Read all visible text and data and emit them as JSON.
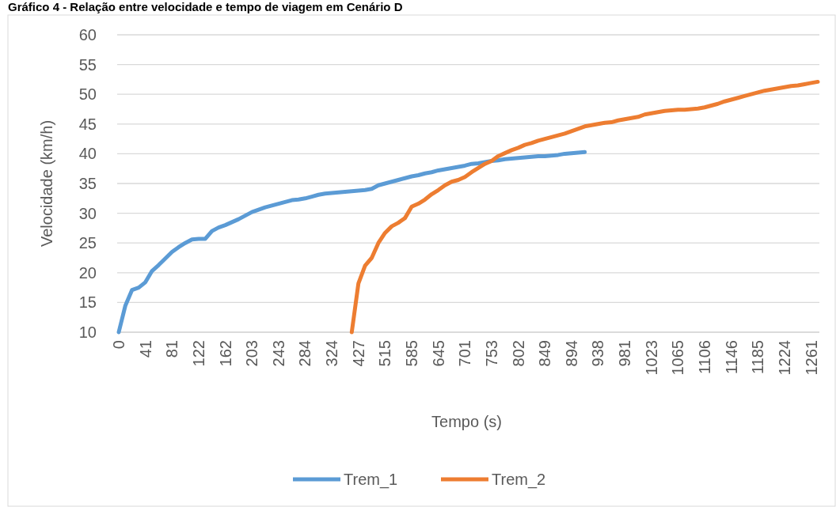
{
  "chart_data": {
    "type": "line",
    "title": "Gráfico 4 - Relação entre velocidade e tempo de viagem em Cenário D",
    "xlabel": "Tempo (s)",
    "ylabel": "Velocidade (km/h)",
    "categories": [
      "0",
      null,
      null,
      null,
      "41",
      null,
      null,
      null,
      "81",
      null,
      null,
      null,
      "122",
      null,
      null,
      null,
      "162",
      null,
      null,
      null,
      "203",
      null,
      null,
      null,
      "243",
      null,
      null,
      null,
      "284",
      null,
      null,
      null,
      "324",
      null,
      null,
      null,
      "427",
      null,
      null,
      null,
      "515",
      null,
      null,
      null,
      "585",
      null,
      null,
      null,
      "645",
      null,
      null,
      null,
      "701",
      null,
      null,
      null,
      "753",
      null,
      null,
      null,
      "802",
      null,
      null,
      null,
      "849",
      null,
      null,
      null,
      "894",
      null,
      null,
      null,
      "938",
      null,
      null,
      null,
      "981",
      null,
      null,
      null,
      "1023",
      null,
      null,
      null,
      "1065",
      null,
      null,
      null,
      "1106",
      null,
      null,
      null,
      "1146",
      null,
      null,
      null,
      "1185",
      null,
      null,
      null,
      "1224",
      null,
      null,
      null,
      "1261",
      null
    ],
    "series": [
      {
        "name": "Trem_1",
        "color": "#5b9bd5",
        "values": [
          10,
          14.5,
          17.1,
          17.5,
          18.4,
          20.3,
          21.3,
          22.4,
          23.5,
          24.3,
          25,
          25.6,
          25.7,
          25.7,
          27,
          27.6,
          28,
          28.5,
          29,
          29.6,
          30.2,
          30.6,
          31,
          31.3,
          31.6,
          31.9,
          32.2,
          32.3,
          32.5,
          32.8,
          33.1,
          33.3,
          33.4,
          33.5,
          33.6,
          33.7,
          33.8,
          33.9,
          34.1,
          34.7,
          35,
          35.3,
          35.6,
          35.9,
          36.2,
          36.4,
          36.7,
          36.9,
          37.2,
          37.4,
          37.6,
          37.8,
          38,
          38.3,
          38.4,
          38.6,
          38.8,
          38.9,
          39.1,
          39.2,
          39.3,
          39.4,
          39.5,
          39.6,
          39.6,
          39.7,
          39.8,
          40,
          40.1,
          40.2,
          40.3,
          null,
          null,
          null,
          null,
          null,
          null,
          null,
          null,
          null,
          null,
          null,
          null,
          null,
          null,
          null,
          null,
          null,
          null,
          null,
          null,
          null,
          null,
          null,
          null,
          null,
          null,
          null,
          null,
          null,
          null,
          null,
          null,
          null,
          null,
          null
        ]
      },
      {
        "name": "Trem_2",
        "color": "#ed7d31",
        "values": [
          null,
          null,
          null,
          null,
          null,
          null,
          null,
          null,
          null,
          null,
          null,
          null,
          null,
          null,
          null,
          null,
          null,
          null,
          null,
          null,
          null,
          null,
          null,
          null,
          null,
          null,
          null,
          null,
          null,
          null,
          null,
          null,
          null,
          null,
          null,
          10,
          18.2,
          21.2,
          22.5,
          25,
          26.7,
          27.8,
          28.4,
          29.2,
          31.1,
          31.6,
          32.3,
          33.2,
          33.9,
          34.7,
          35.3,
          35.6,
          36.1,
          36.9,
          37.6,
          38.3,
          38.8,
          39.6,
          40.1,
          40.6,
          41,
          41.5,
          41.8,
          42.2,
          42.5,
          42.8,
          43.1,
          43.4,
          43.8,
          44.2,
          44.6,
          44.8,
          45,
          45.2,
          45.3,
          45.6,
          45.8,
          46,
          46.2,
          46.6,
          46.8,
          47,
          47.2,
          47.3,
          47.4,
          47.4,
          47.5,
          47.6,
          47.8,
          48.1,
          48.4,
          48.8,
          49.1,
          49.4,
          49.7,
          50,
          50.3,
          50.6,
          50.8,
          51,
          51.2,
          51.4,
          51.5,
          51.7,
          51.9,
          52.1
        ]
      }
    ],
    "ylim": [
      10,
      60
    ],
    "yticks": [
      10,
      15,
      20,
      25,
      30,
      35,
      40,
      45,
      50,
      55,
      60
    ],
    "grid": "y",
    "legend": "bottom",
    "line_style": "solid"
  }
}
